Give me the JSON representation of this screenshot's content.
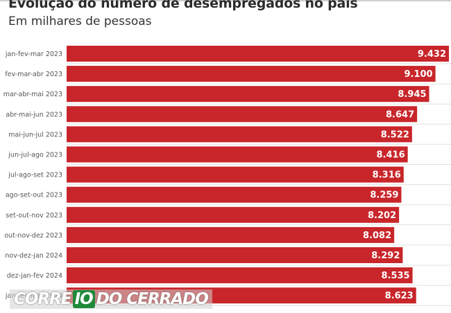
{
  "title": "Evolução do número de desempregados no país",
  "subtitle": "Em milhares de pessoas",
  "logo": {
    "word1": "CORRE",
    "word2": "IO",
    "word3": "DO CERRADO"
  },
  "colors": {
    "bar": "#c8262b",
    "divider": "#e0e0e0"
  },
  "chart_data": {
    "type": "bar",
    "orientation": "horizontal",
    "title": "Evolução do número de desempregados no país",
    "subtitle": "Em milhares de pessoas",
    "categories": [
      "jan-fev-mar 2023",
      "fev-mar-abr 2023",
      "mar-abr-mai 2023",
      "abr-mai-jun 2023",
      "mai-jun-jul 2023",
      "jun-jul-ago 2023",
      "jul-ago-set 2023",
      "ago-set-out 2023",
      "set-out-nov 2023",
      "out-nov-dez 2023",
      "nov-dez-jan 2024",
      "dez-jan-fev 2024",
      "jan-fev-mar 2024"
    ],
    "values": [
      9432,
      9100,
      8945,
      8647,
      8522,
      8416,
      8316,
      8259,
      8202,
      8082,
      8292,
      8535,
      8623
    ],
    "value_labels": [
      "9.432",
      "9.100",
      "8.945",
      "8.647",
      "8.522",
      "8.416",
      "8.316",
      "8.259",
      "8.202",
      "8.082",
      "8.292",
      "8.535",
      "8.623"
    ],
    "xlim": [
      0,
      9432
    ],
    "grid": false,
    "legend": "none"
  }
}
